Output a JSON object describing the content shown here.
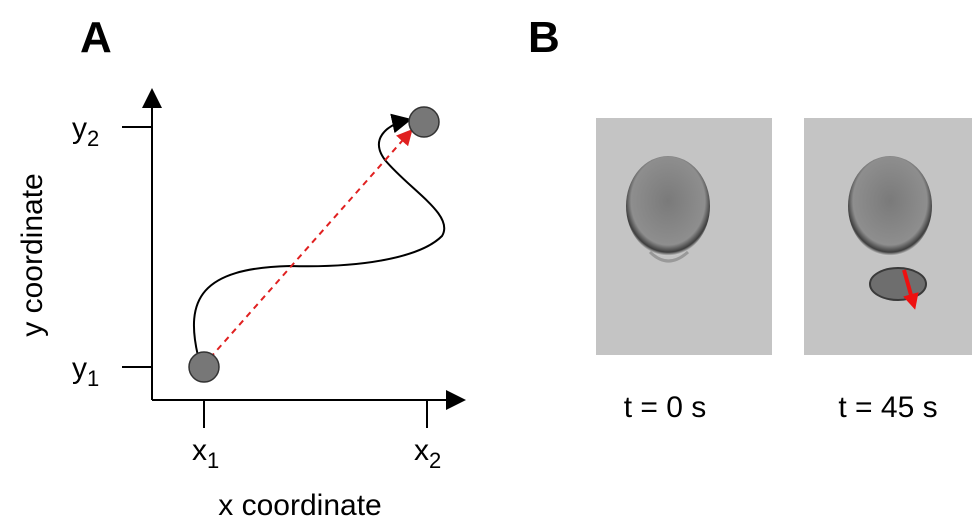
{
  "panels": [
    {
      "label": "A",
      "y_axis_label": "y coordinate",
      "x_axis_label": "x coordinate",
      "y_ticks": [
        {
          "base": "y",
          "sub": "2"
        },
        {
          "base": "y",
          "sub": "1"
        }
      ],
      "x_ticks": [
        {
          "base": "x",
          "sub": "1"
        },
        {
          "base": "x",
          "sub": "2"
        }
      ]
    },
    {
      "label": "B",
      "images": [
        {
          "caption": "t = 0 s"
        },
        {
          "caption": "t = 45 s"
        }
      ]
    }
  ]
}
